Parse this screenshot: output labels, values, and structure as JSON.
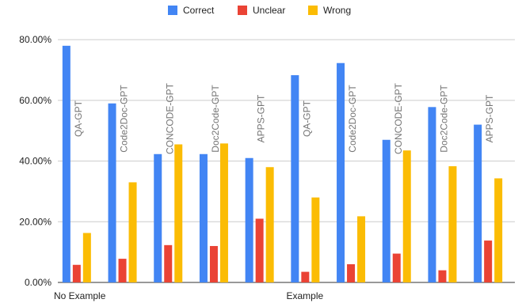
{
  "chart_data": {
    "type": "bar",
    "categories": [
      "QA-GPT",
      "Code2Doc-GPT",
      "CONCODE-GPT",
      "Doc2Code-GPT",
      "APPS-GPT",
      "QA-GPT",
      "Code2Doc-GPT",
      "CONCODE-GPT",
      "Doc2Code-GPT",
      "APPS-GPT"
    ],
    "groups": [
      {
        "label": "No Example",
        "categories": 5
      },
      {
        "label": "Example",
        "categories": 5
      }
    ],
    "series": [
      {
        "name": "Correct",
        "color": "#4285F4",
        "values": [
          78.0,
          59.0,
          42.3,
          42.3,
          41.0,
          68.3,
          72.3,
          47.0,
          57.8,
          52.0
        ]
      },
      {
        "name": "Unclear",
        "color": "#EA4335",
        "values": [
          5.8,
          7.8,
          12.3,
          12.0,
          21.0,
          3.5,
          6.0,
          9.5,
          4.0,
          13.8
        ]
      },
      {
        "name": "Wrong",
        "color": "#FBBC04",
        "values": [
          16.3,
          33.0,
          45.5,
          45.8,
          38.0,
          28.0,
          21.8,
          43.5,
          38.3,
          34.3
        ]
      }
    ],
    "yticks": [
      "0.00%",
      "20.00%",
      "40.00%",
      "60.00%",
      "80.00%"
    ],
    "ylim": [
      0,
      85
    ],
    "grid": true,
    "legend_position": "top"
  }
}
